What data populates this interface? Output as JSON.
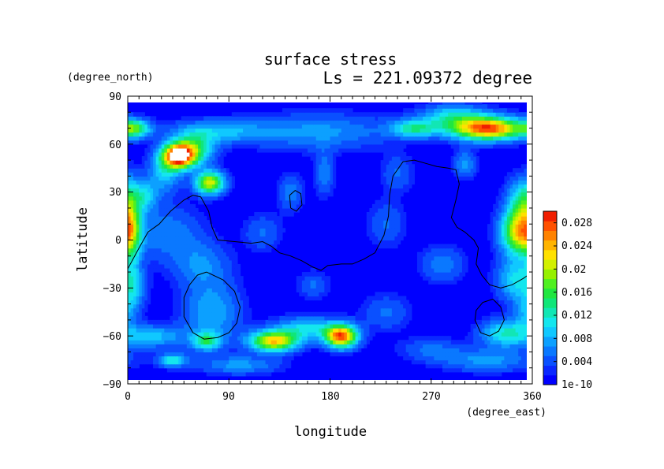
{
  "chart_data": {
    "type": "heatmap",
    "title": "surface stress",
    "subtitle": "Ls = 221.09372 degree",
    "xlabel": "longitude",
    "ylabel": "latitude",
    "x_unit": "(degree_east)",
    "y_unit": "(degree_north)",
    "xlim": [
      0,
      360
    ],
    "ylim": [
      -90,
      90
    ],
    "x_ticks": [
      "0",
      "90",
      "180",
      "270",
      "360"
    ],
    "y_ticks": [
      "−90",
      "−60",
      "−30",
      "0",
      "30",
      "60",
      "90"
    ],
    "x_tick_values": [
      0,
      90,
      180,
      270,
      360
    ],
    "y_tick_values": [
      -90,
      -60,
      -30,
      0,
      30,
      60,
      90
    ],
    "colorbar": {
      "labels": [
        "1e-10",
        "0.004",
        "0.008",
        "0.012",
        "0.016",
        "0.02",
        "0.024",
        "0.028"
      ],
      "label_values": [
        0,
        0.004,
        0.008,
        0.012,
        0.016,
        0.02,
        0.024,
        0.028
      ],
      "vmin": 0,
      "vmax": 0.03,
      "colors": [
        "#0000ff",
        "#0a28ff",
        "#0a50ff",
        "#0a78ff",
        "#0ca0ff",
        "#10c8ff",
        "#14e6ee",
        "#12e6b4",
        "#10e678",
        "#20e640",
        "#50f020",
        "#96f000",
        "#d2f000",
        "#ffe100",
        "#ffb400",
        "#ff8200",
        "#ff5000",
        "#f01e00"
      ]
    },
    "field_background": 0.0012,
    "hotspots": [
      {
        "lon": 45,
        "lat": 53,
        "amp": 0.029,
        "wlon": 10,
        "wlat": 5.5
      },
      {
        "lon": 60,
        "lat": 57,
        "amp": 0.012,
        "wlon": 12,
        "wlat": 7
      },
      {
        "lon": 73,
        "lat": 36,
        "amp": 0.02,
        "wlon": 9,
        "wlat": 5
      },
      {
        "lon": 33,
        "lat": 43,
        "amp": 0.008,
        "wlon": 10,
        "wlat": 9
      },
      {
        "lon": 5,
        "lat": 70,
        "amp": 0.014,
        "wlon": 10,
        "wlat": 4
      },
      {
        "lon": 80,
        "lat": 68,
        "amp": 0.007,
        "wlon": 30,
        "wlat": 5
      },
      {
        "lon": 170,
        "lat": 68,
        "amp": 0.006,
        "wlon": 45,
        "wlat": 8
      },
      {
        "lon": 255,
        "lat": 70,
        "amp": 0.011,
        "wlon": 15,
        "wlat": 4
      },
      {
        "lon": 320,
        "lat": 70,
        "amp": 0.027,
        "wlon": 23,
        "wlat": 5
      },
      {
        "lon": 290,
        "lat": 78,
        "amp": 0.009,
        "wlon": 20,
        "wlat": 5
      },
      {
        "lon": 350,
        "lat": 5,
        "amp": 0.022,
        "wlon": 12,
        "wlat": 10
      },
      {
        "lon": 352,
        "lat": 25,
        "amp": 0.011,
        "wlon": 10,
        "wlat": 10
      },
      {
        "lon": 3,
        "lat": 8,
        "amp": 0.01,
        "wlon": 6,
        "wlat": 18
      },
      {
        "lon": 35,
        "lat": 5,
        "amp": 0.005,
        "wlon": 22,
        "wlat": 12
      },
      {
        "lon": 65,
        "lat": -15,
        "amp": 0.005,
        "wlon": 18,
        "wlat": 10
      },
      {
        "lon": 130,
        "lat": -63,
        "amp": 0.022,
        "wlon": 15,
        "wlat": 4.5
      },
      {
        "lon": 190,
        "lat": -60,
        "amp": 0.026,
        "wlon": 10,
        "wlat": 5
      },
      {
        "lon": 160,
        "lat": -55,
        "amp": 0.009,
        "wlon": 20,
        "wlat": 5
      },
      {
        "lon": 75,
        "lat": -45,
        "amp": 0.007,
        "wlon": 18,
        "wlat": 14
      },
      {
        "lon": 70,
        "lat": -63,
        "amp": 0.011,
        "wlon": 9,
        "wlat": 4
      },
      {
        "lon": 20,
        "lat": -60,
        "amp": 0.008,
        "wlon": 22,
        "wlat": 5
      },
      {
        "lon": 40,
        "lat": -75,
        "amp": 0.01,
        "wlon": 9,
        "wlat": 3
      },
      {
        "lon": 100,
        "lat": -78,
        "amp": 0.006,
        "wlon": 25,
        "wlat": 4
      },
      {
        "lon": 335,
        "lat": -58,
        "amp": 0.01,
        "wlon": 15,
        "wlat": 6
      },
      {
        "lon": 345,
        "lat": -25,
        "amp": 0.009,
        "wlon": 12,
        "wlat": 9
      },
      {
        "lon": 320,
        "lat": -75,
        "amp": 0.006,
        "wlon": 30,
        "wlat": 5
      },
      {
        "lon": 270,
        "lat": -68,
        "amp": 0.004,
        "wlon": 20,
        "wlat": 5
      },
      {
        "lon": 230,
        "lat": -45,
        "amp": 0.004,
        "wlon": 15,
        "wlat": 8
      },
      {
        "lon": 165,
        "lat": -28,
        "amp": 0.004,
        "wlon": 10,
        "wlat": 6
      },
      {
        "lon": 175,
        "lat": 42,
        "amp": 0.005,
        "wlon": 6,
        "wlat": 10
      },
      {
        "lon": 145,
        "lat": 30,
        "amp": 0.005,
        "wlon": 8,
        "wlat": 8
      },
      {
        "lon": 300,
        "lat": 48,
        "amp": 0.006,
        "wlon": 7,
        "wlat": 6
      },
      {
        "lon": 230,
        "lat": 10,
        "amp": 0.004,
        "wlon": 12,
        "wlat": 10
      },
      {
        "lon": 280,
        "lat": -15,
        "amp": 0.005,
        "wlon": 14,
        "wlat": 8
      },
      {
        "lon": 120,
        "lat": 5,
        "amp": 0.004,
        "wlon": 12,
        "wlat": 8
      },
      {
        "lon": 15,
        "lat": 28,
        "amp": 0.008,
        "wlon": 8,
        "wlat": 7
      },
      {
        "lon": 5,
        "lat": -30,
        "amp": 0.007,
        "wlon": 8,
        "wlat": 10
      },
      {
        "lon": 240,
        "lat": 42,
        "amp": 0.004,
        "wlon": 10,
        "wlat": 8
      },
      {
        "lon": 355,
        "lat": -45,
        "amp": 0.006,
        "wlon": 8,
        "wlat": 8
      }
    ],
    "contours": [
      {
        "points": [
          [
            0,
            -18
          ],
          [
            10,
            -5
          ],
          [
            18,
            5
          ],
          [
            28,
            10
          ],
          [
            38,
            18
          ],
          [
            50,
            25
          ],
          [
            58,
            28
          ],
          [
            65,
            27
          ],
          [
            72,
            18
          ],
          [
            75,
            8
          ],
          [
            80,
            0
          ],
          [
            95,
            -1
          ],
          [
            110,
            -2
          ],
          [
            120,
            -1
          ],
          [
            128,
            -4
          ],
          [
            135,
            -8
          ],
          [
            145,
            -10
          ],
          [
            155,
            -13
          ],
          [
            165,
            -17
          ],
          [
            172,
            -19
          ],
          [
            178,
            -16
          ],
          [
            190,
            -15
          ],
          [
            200,
            -15
          ],
          [
            210,
            -12
          ],
          [
            220,
            -8
          ],
          [
            228,
            3
          ],
          [
            232,
            15
          ],
          [
            233,
            28
          ],
          [
            236,
            40
          ],
          [
            245,
            49
          ],
          [
            255,
            50
          ],
          [
            265,
            48
          ],
          [
            275,
            46
          ],
          [
            285,
            45
          ],
          [
            292,
            44
          ],
          [
            295,
            35
          ],
          [
            292,
            25
          ],
          [
            288,
            14
          ],
          [
            293,
            8
          ],
          [
            300,
            5
          ],
          [
            308,
            0
          ],
          [
            312,
            -5
          ],
          [
            310,
            -15
          ],
          [
            315,
            -22
          ],
          [
            322,
            -28
          ],
          [
            332,
            -30
          ],
          [
            342,
            -28
          ],
          [
            352,
            -24
          ],
          [
            360,
            -20
          ]
        ]
      },
      {
        "points": [
          [
            145,
            20
          ],
          [
            150,
            18
          ],
          [
            155,
            22
          ],
          [
            154,
            29
          ],
          [
            149,
            31
          ],
          [
            144,
            28
          ],
          [
            145,
            20
          ]
        ]
      },
      {
        "points": [
          [
            70,
            -20
          ],
          [
            85,
            -25
          ],
          [
            95,
            -32
          ],
          [
            100,
            -42
          ],
          [
            97,
            -52
          ],
          [
            90,
            -58
          ],
          [
            80,
            -61
          ],
          [
            68,
            -62
          ],
          [
            58,
            -58
          ],
          [
            50,
            -48
          ],
          [
            50,
            -36
          ],
          [
            55,
            -28
          ],
          [
            62,
            -22
          ],
          [
            70,
            -20
          ]
        ]
      },
      {
        "points": [
          [
            325,
            -37
          ],
          [
            332,
            -42
          ],
          [
            335,
            -50
          ],
          [
            330,
            -57
          ],
          [
            322,
            -60
          ],
          [
            314,
            -58
          ],
          [
            309,
            -50
          ],
          [
            310,
            -44
          ],
          [
            316,
            -39
          ],
          [
            325,
            -37
          ]
        ]
      }
    ]
  }
}
